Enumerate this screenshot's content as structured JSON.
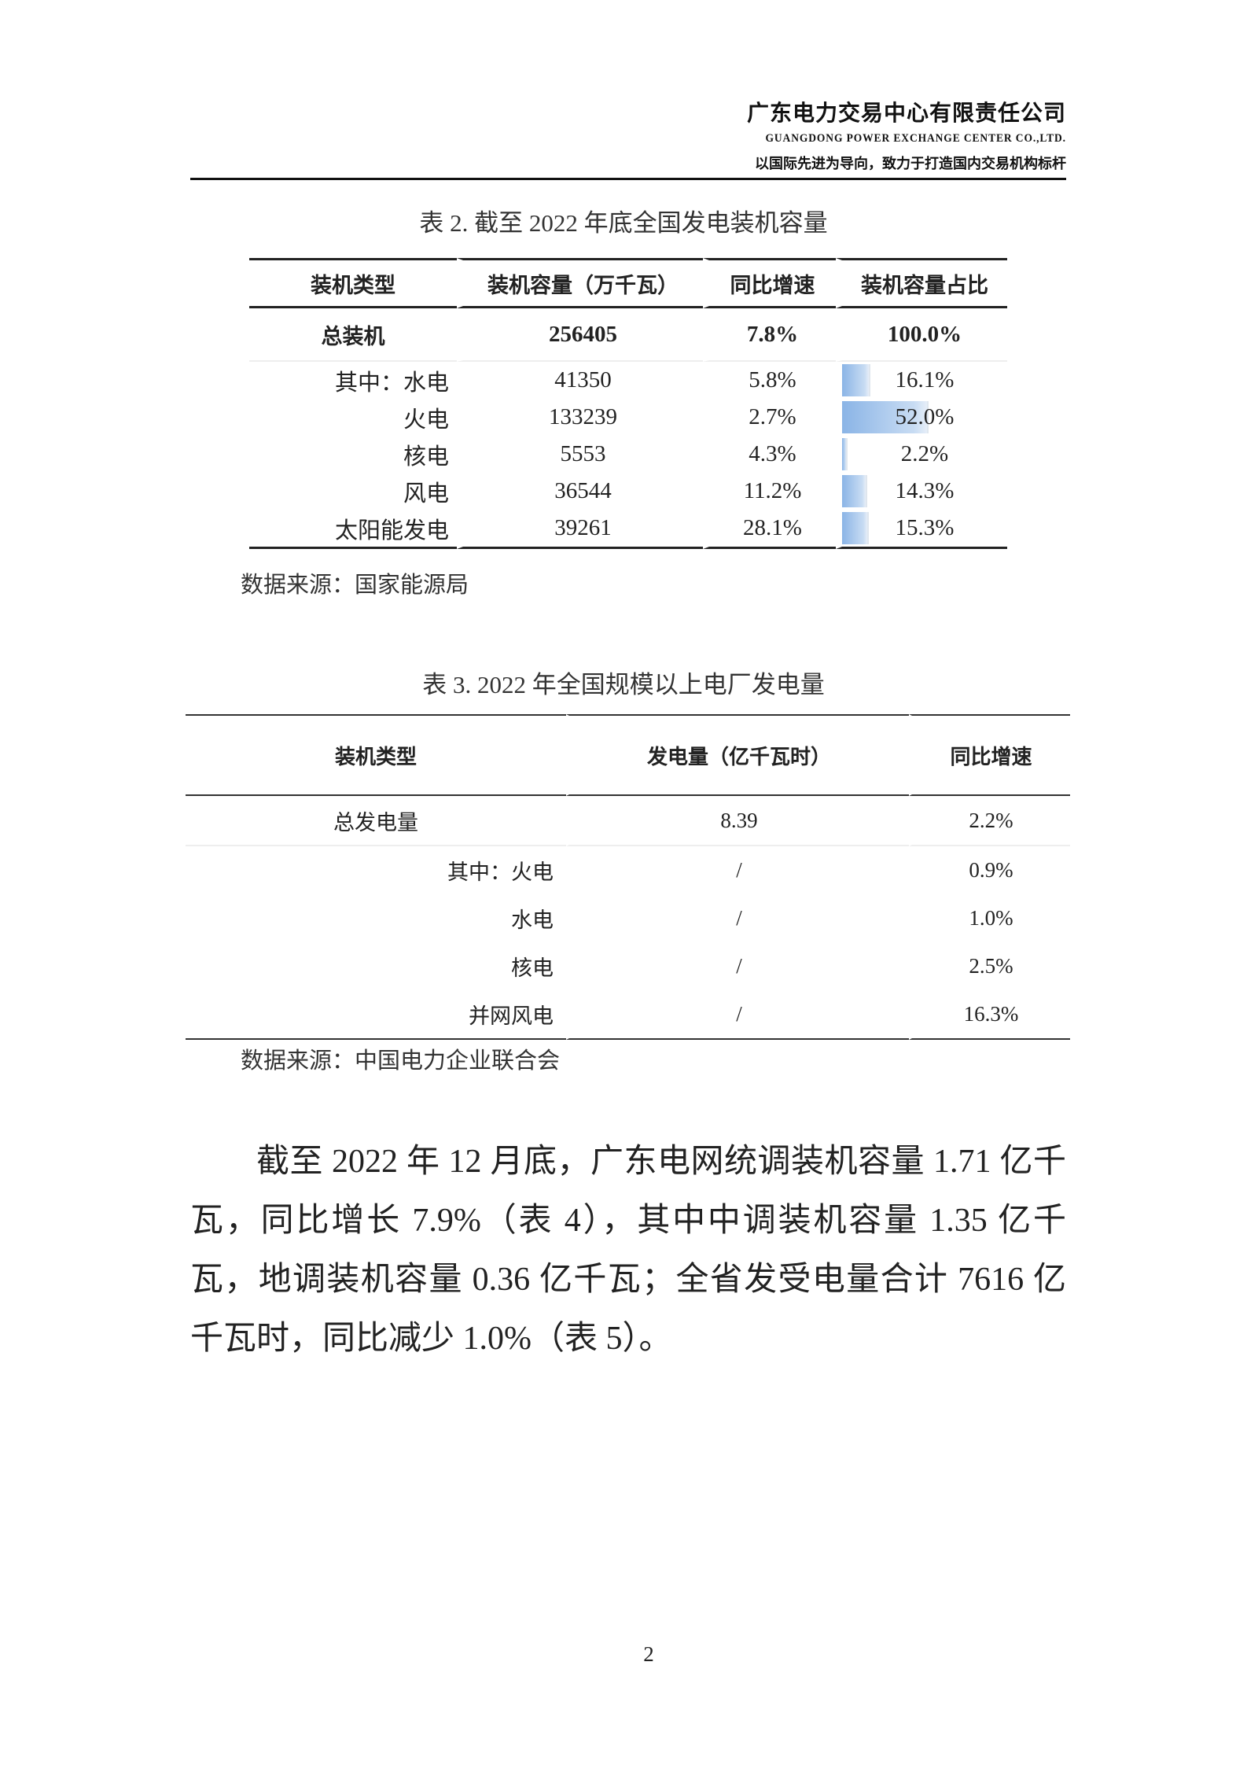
{
  "header": {
    "company": "广东电力交易中心有限责任公司",
    "company_en": "GUANGDONG POWER EXCHANGE CENTER CO.,LTD.",
    "slogan": "以国际先进为导向，致力于打造国内交易机构标杆"
  },
  "table2": {
    "caption": "表 2.  截至 2022 年底全国发电装机容量",
    "columns": [
      "装机类型",
      "装机容量（万千瓦）",
      "同比增速",
      "装机容量占比"
    ],
    "total": {
      "type": "总装机",
      "capacity": "256405",
      "growth": "7.8%",
      "share": "100.0%"
    },
    "rows": [
      {
        "type": "其中：水电",
        "capacity": "41350",
        "growth": "5.8%",
        "share": "16.1%",
        "share_value": 16.1
      },
      {
        "type": "火电",
        "capacity": "133239",
        "growth": "2.7%",
        "share": "52.0%",
        "share_value": 52.0
      },
      {
        "type": "核电",
        "capacity": "5553",
        "growth": "4.3%",
        "share": "2.2%",
        "share_value": 2.2
      },
      {
        "type": "风电",
        "capacity": "36544",
        "growth": "11.2%",
        "share": "14.3%",
        "share_value": 14.3
      },
      {
        "type": "太阳能发电",
        "capacity": "39261",
        "growth": "28.1%",
        "share": "15.3%",
        "share_value": 15.3
      }
    ],
    "bar_color": "#8ab4e6",
    "source": "数据来源：国家能源局"
  },
  "table3": {
    "caption": "表 3. 2022 年全国规模以上电厂发电量",
    "columns": [
      "装机类型",
      "发电量（亿千瓦时）",
      "同比增速"
    ],
    "total": {
      "type": "总发电量",
      "generation": "8.39",
      "growth": "2.2%"
    },
    "rows": [
      {
        "type": "其中：火电",
        "generation": "/",
        "growth": "0.9%"
      },
      {
        "type": "水电",
        "generation": "/",
        "growth": "1.0%"
      },
      {
        "type": "核电",
        "generation": "/",
        "growth": "2.5%"
      },
      {
        "type": "并网风电",
        "generation": "/",
        "growth": "16.3%"
      }
    ],
    "source": "数据来源：中国电力企业联合会"
  },
  "paragraph": "截至 2022 年 12 月底，广东电网统调装机容量 1.71 亿千瓦，同比增长 7.9%（表 4），其中中调装机容量 1.35 亿千瓦，地调装机容量 0.36 亿千瓦；全省发受电量合计 7616 亿千瓦时，同比减少 1.0%（表 5）。",
  "page_number": "2"
}
